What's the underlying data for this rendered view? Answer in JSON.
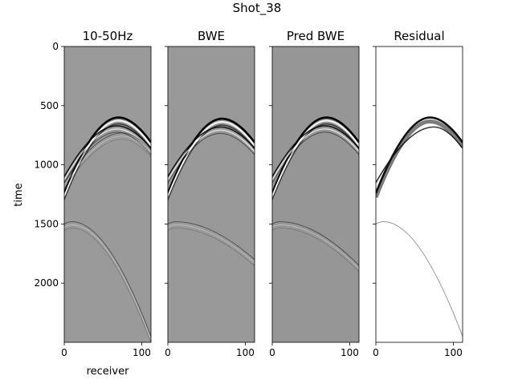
{
  "figure": {
    "suptitle": "Shot_38",
    "xlabel": "receiver",
    "ylabel": "time"
  },
  "chart_data": [
    {
      "type": "heatmap",
      "title": "10-50Hz",
      "background": "#9a9a9a",
      "colormap": "gray",
      "xlim": [
        0,
        112
      ],
      "ylim": [
        2500,
        0
      ],
      "xticks": [
        "0",
        "100"
      ],
      "yticks": [
        "0",
        "500",
        "1000",
        "1500",
        "2000"
      ],
      "events": [
        {
          "apex_receiver": 70,
          "apex_time": 600,
          "left_time": 1240,
          "right_time": 810,
          "amplitude": "strong"
        },
        {
          "apex_receiver": 68,
          "apex_time": 670,
          "left_time": 1100,
          "right_time": 860,
          "amplitude": "medium"
        },
        {
          "apex_receiver": 75,
          "apex_time": 730,
          "left_time": 1150,
          "right_time": 880,
          "amplitude": "weak"
        },
        {
          "apex_receiver": 10,
          "apex_time": 1480,
          "left_time": 1500,
          "right_time": 2450,
          "amplitude": "weak"
        }
      ]
    },
    {
      "type": "heatmap",
      "title": "BWE",
      "background": "#999999",
      "colormap": "gray",
      "xlim": [
        0,
        112
      ],
      "ylim": [
        2500,
        0
      ],
      "xticks": [
        "0",
        "100"
      ],
      "yticks": [
        "0",
        "500",
        "1000",
        "1500",
        "2000"
      ],
      "events": [
        {
          "apex_receiver": 70,
          "apex_time": 610,
          "left_time": 1240,
          "right_time": 810,
          "amplitude": "strong"
        },
        {
          "apex_receiver": 68,
          "apex_time": 680,
          "left_time": 1100,
          "right_time": 860,
          "amplitude": "medium"
        },
        {
          "apex_receiver": 10,
          "apex_time": 1480,
          "left_time": 1500,
          "right_time": 1800,
          "amplitude": "weak"
        }
      ]
    },
    {
      "type": "heatmap",
      "title": "Pred BWE",
      "background": "#969696",
      "colormap": "gray",
      "xlim": [
        0,
        112
      ],
      "ylim": [
        2500,
        0
      ],
      "xticks": [
        "0",
        "100"
      ],
      "yticks": [
        "0",
        "500",
        "1000",
        "1500",
        "2000"
      ],
      "events": [
        {
          "apex_receiver": 70,
          "apex_time": 600,
          "left_time": 1240,
          "right_time": 810,
          "amplitude": "strong"
        },
        {
          "apex_receiver": 68,
          "apex_time": 670,
          "left_time": 1100,
          "right_time": 860,
          "amplitude": "medium"
        },
        {
          "apex_receiver": 10,
          "apex_time": 1480,
          "left_time": 1500,
          "right_time": 1850,
          "amplitude": "weak"
        }
      ]
    },
    {
      "type": "heatmap",
      "title": "Residual",
      "background": "#ffffff",
      "colormap": "gray_r",
      "xlim": [
        0,
        112
      ],
      "ylim": [
        2500,
        0
      ],
      "xticks": [
        "0",
        "100"
      ],
      "yticks": [
        "0",
        "500",
        "1000",
        "1500",
        "2000"
      ],
      "events": [
        {
          "apex_receiver": 70,
          "apex_time": 600,
          "left_time": 1240,
          "right_time": 810,
          "amplitude": "strong"
        },
        {
          "apex_receiver": 75,
          "apex_time": 680,
          "left_time": 1150,
          "right_time": 860,
          "amplitude": "medium"
        },
        {
          "apex_receiver": 10,
          "apex_time": 1480,
          "left_time": 1500,
          "right_time": 2450,
          "amplitude": "weak"
        }
      ]
    }
  ]
}
